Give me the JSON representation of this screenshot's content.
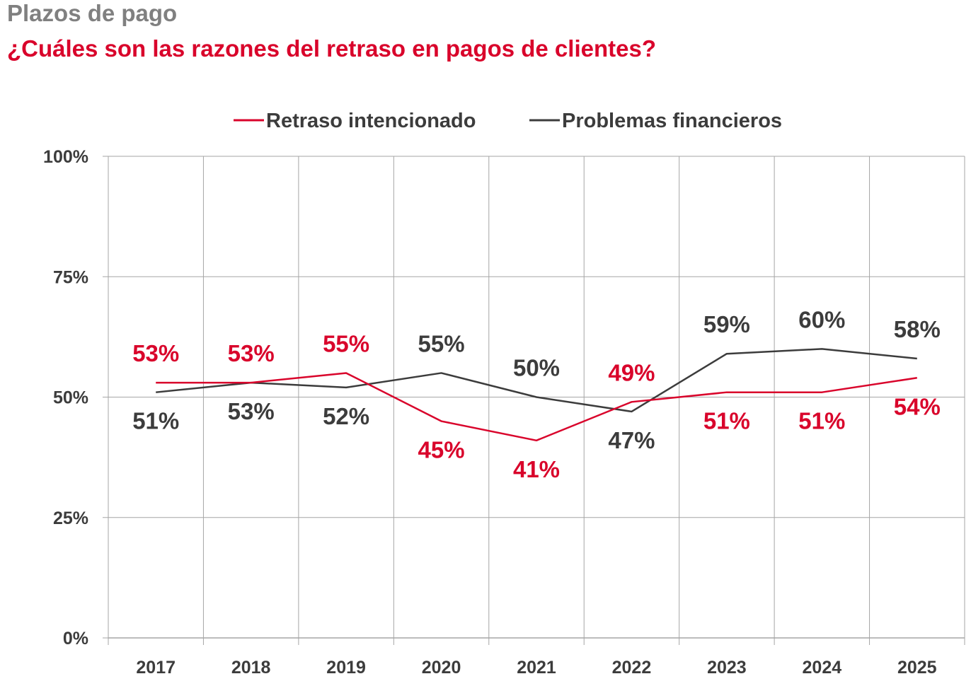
{
  "header": {
    "supertitle": "Plazos de pago",
    "title": "¿Cuáles son las razones del retraso en pagos de clientes?"
  },
  "chart_data": {
    "type": "line",
    "title": "¿Cuáles son las razones del retraso en pagos de clientes?",
    "xlabel": "",
    "ylabel": "",
    "x": [
      "2017",
      "2018",
      "2019",
      "2020",
      "2021",
      "2022",
      "2023",
      "2024",
      "2025"
    ],
    "ylim": [
      0,
      100
    ],
    "yticks": [
      "0%",
      "25%",
      "50%",
      "75%",
      "100%"
    ],
    "ytick_values": [
      0,
      25,
      50,
      75,
      100
    ],
    "grid": true,
    "legend_position": "top-center",
    "series": [
      {
        "name": "Retraso intencionado",
        "color": "#d9042b",
        "values": [
          53,
          53,
          55,
          45,
          41,
          49,
          51,
          51,
          54
        ],
        "labels": [
          "53%",
          "53%",
          "55%",
          "45%",
          "41%",
          "49%",
          "51%",
          "51%",
          "54%"
        ]
      },
      {
        "name": "Problemas financieros",
        "color": "#3c3c3c",
        "values": [
          51,
          53,
          52,
          55,
          50,
          47,
          59,
          60,
          58
        ],
        "labels": [
          "51%",
          "53%",
          "52%",
          "55%",
          "50%",
          "47%",
          "59%",
          "60%",
          "58%"
        ]
      }
    ]
  }
}
